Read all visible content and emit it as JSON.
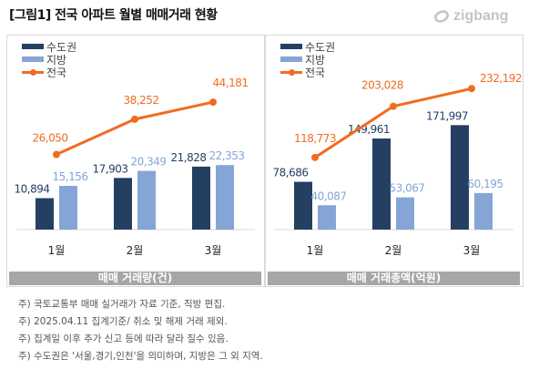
{
  "header": {
    "title": "[그림1] 전국 아파트 월별 매매거래 현황",
    "logo": "zigbang"
  },
  "legend": {
    "capital": "수도권",
    "regional": "지방",
    "national": "전국"
  },
  "colors": {
    "capital": "#253f63",
    "regional": "#85a5d6",
    "national": "#f26b21",
    "axis": "#d9d9d9"
  },
  "chart_data": [
    {
      "type": "bar+line",
      "title": "매매 거래량(건)",
      "categories": [
        "1월",
        "2월",
        "3월"
      ],
      "series": [
        {
          "name": "수도권",
          "type": "bar",
          "values": [
            10894,
            17903,
            21828
          ],
          "labels": [
            "10,894",
            "17,903",
            "21,828"
          ]
        },
        {
          "name": "지방",
          "type": "bar",
          "values": [
            15156,
            20349,
            22353
          ],
          "labels": [
            "15,156",
            "20,349",
            "22,353"
          ]
        },
        {
          "name": "전국",
          "type": "line",
          "values": [
            26050,
            38252,
            44181
          ],
          "labels": [
            "26,050",
            "38,252",
            "44,181"
          ]
        }
      ],
      "ylim": [
        0,
        60000
      ]
    },
    {
      "type": "bar+line",
      "title": "매매 거래총액(억원)",
      "categories": [
        "1월",
        "2월",
        "3월"
      ],
      "series": [
        {
          "name": "수도권",
          "type": "bar",
          "values": [
            78686,
            149961,
            171997
          ],
          "labels": [
            "78,686",
            "149,961",
            "171,997"
          ]
        },
        {
          "name": "지방",
          "type": "bar",
          "values": [
            40087,
            53067,
            60195
          ],
          "labels": [
            "40,087",
            "53,067",
            "60,195"
          ]
        },
        {
          "name": "전국",
          "type": "line",
          "values": [
            118773,
            203028,
            232192
          ],
          "labels": [
            "118,773",
            "203,028",
            "232,192"
          ]
        }
      ],
      "ylim": [
        0,
        285000
      ]
    }
  ],
  "notes": [
    "주) 국토교통부 매매 실거래가 자료 기준, 직방 편집.",
    "주) 2025.04.11 집계기준/ 취소 및 해제 거래 제외.",
    "주) 집계일 이후 추가 신고 등에 따라 달라 질수 있음.",
    "주) 수도권은 '서울,경기,인천'을 의미하며, 지방은 그 외 지역."
  ]
}
